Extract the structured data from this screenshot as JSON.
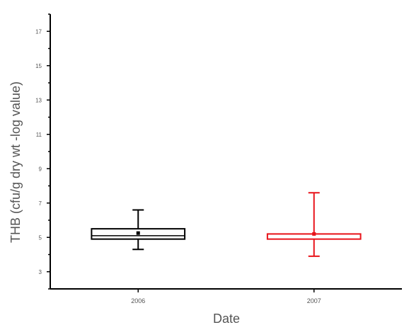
{
  "chart_data": {
    "type": "box",
    "ylabel": "THB (cfu/g dry wt -log value)",
    "xlabel": "Date",
    "ylim": [
      2,
      18
    ],
    "yticks": [
      2,
      3,
      4,
      5,
      6,
      7,
      8,
      9,
      10,
      11,
      12,
      13,
      14,
      15,
      16,
      17,
      18
    ],
    "ytick_labels": [
      "",
      "3",
      "",
      "5",
      "",
      "7",
      "",
      "9",
      "",
      "11",
      "",
      "13",
      "",
      "15",
      "",
      "17",
      ""
    ],
    "categories": [
      "2006",
      "2007"
    ],
    "boxes": [
      {
        "category": "2006",
        "color": "#000000",
        "whisker_low": 4.3,
        "q1": 4.9,
        "median": 5.1,
        "q3": 5.5,
        "whisker_high": 6.6,
        "mean": 5.25
      },
      {
        "category": "2007",
        "color": "#e8141b",
        "whisker_low": 3.9,
        "q1": 4.9,
        "median": 5.2,
        "q3": 5.2,
        "whisker_high": 7.6,
        "mean": 5.2
      }
    ],
    "grid": false,
    "legend": "none"
  }
}
